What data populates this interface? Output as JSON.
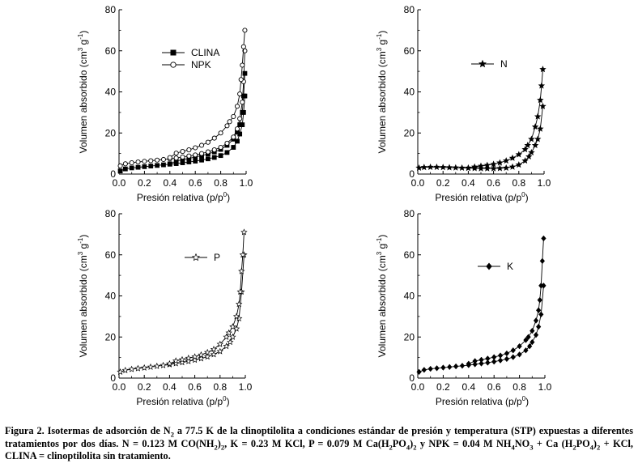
{
  "chart_data": [
    {
      "id": "clina-npk",
      "type": "line",
      "xlabel": "Presión relativa (p/p0)",
      "ylabel": "Volumen absorbido (cm3 g-1)",
      "xlim": [
        0.0,
        1.0
      ],
      "ylim": [
        0,
        80
      ],
      "xticks": [
        "0.0",
        "0.2",
        "0.4",
        "0.6",
        "0.8",
        "1.0"
      ],
      "yticks": [
        "0",
        "20",
        "40",
        "60",
        "80"
      ],
      "legend_position": "upper-left",
      "series": [
        {
          "name": "CLINA",
          "marker": "square-filled",
          "adsorption": {
            "x": [
              0.01,
              0.05,
              0.1,
              0.15,
              0.2,
              0.25,
              0.3,
              0.35,
              0.4,
              0.45,
              0.5,
              0.55,
              0.6,
              0.65,
              0.7,
              0.75,
              0.8,
              0.85,
              0.9,
              0.93,
              0.95,
              0.97,
              0.98,
              0.99
            ],
            "y": [
              1.5,
              2.5,
              3.0,
              3.3,
              3.6,
              3.9,
              4.2,
              4.5,
              4.8,
              5.1,
              5.5,
              5.9,
              6.3,
              6.8,
              7.4,
              8.1,
              9.0,
              10.5,
              13.0,
              16.0,
              19.5,
              24.0,
              30.0,
              38.0
            ]
          },
          "desorption": {
            "x": [
              0.99,
              0.98,
              0.97,
              0.95,
              0.93,
              0.9,
              0.85,
              0.8,
              0.75,
              0.7,
              0.65,
              0.6,
              0.55,
              0.5,
              0.45,
              0.4
            ],
            "y": [
              49.0,
              38.0,
              30.0,
              24.0,
              20.5,
              17.0,
              14.0,
              12.0,
              10.8,
              9.8,
              9.0,
              8.3,
              7.6,
              7.0,
              6.3,
              5.0
            ]
          }
        },
        {
          "name": "NPK",
          "marker": "circle-open",
          "adsorption": {
            "x": [
              0.01,
              0.05,
              0.1,
              0.15,
              0.2,
              0.25,
              0.3,
              0.35,
              0.4,
              0.45,
              0.5,
              0.55,
              0.6,
              0.65,
              0.7,
              0.75,
              0.8,
              0.85,
              0.9,
              0.93,
              0.95,
              0.97,
              0.98,
              0.99
            ],
            "y": [
              4.0,
              5.0,
              5.5,
              5.9,
              6.2,
              6.5,
              6.8,
              7.1,
              7.4,
              7.8,
              8.3,
              8.8,
              9.3,
              10.0,
              10.8,
              11.8,
              13.0,
              15.0,
              18.0,
              22.0,
              27.0,
              35.0,
              45.0,
              60.0
            ]
          },
          "desorption": {
            "x": [
              0.99,
              0.98,
              0.97,
              0.96,
              0.95,
              0.93,
              0.9,
              0.87,
              0.85,
              0.8,
              0.75,
              0.7,
              0.65,
              0.6,
              0.55,
              0.5,
              0.45,
              0.4
            ],
            "y": [
              70.0,
              62.0,
              53.0,
              46.0,
              39.0,
              33.0,
              28.0,
              25.5,
              23.5,
              20.0,
              17.5,
              15.5,
              14.0,
              12.8,
              11.8,
              11.0,
              10.2,
              8.0
            ]
          }
        }
      ]
    },
    {
      "id": "n",
      "type": "line",
      "xlabel": "Presión relativa (p/p0)",
      "ylabel": "Volumen absorbido (cm3 g-1)",
      "xlim": [
        0.0,
        1.0
      ],
      "ylim": [
        0,
        80
      ],
      "xticks": [
        "0.0",
        "0.2",
        "0.4",
        "0.6",
        "0.8",
        "1.0"
      ],
      "yticks": [
        "0",
        "20",
        "40",
        "60",
        "80"
      ],
      "legend_position": "upper-center",
      "series": [
        {
          "name": "N",
          "marker": "star-filled",
          "adsorption": {
            "x": [
              0.01,
              0.05,
              0.1,
              0.15,
              0.2,
              0.25,
              0.3,
              0.35,
              0.4,
              0.45,
              0.5,
              0.55,
              0.6,
              0.65,
              0.7,
              0.75,
              0.8,
              0.85,
              0.88,
              0.9,
              0.93,
              0.95,
              0.97,
              0.99
            ],
            "y": [
              3.0,
              3.3,
              3.4,
              3.4,
              3.3,
              3.2,
              3.1,
              3.0,
              2.9,
              2.8,
              2.7,
              2.7,
              2.7,
              2.8,
              3.0,
              3.5,
              4.5,
              6.5,
              8.5,
              10.5,
              14.0,
              17.0,
              22.0,
              33.0
            ]
          },
          "desorption": {
            "x": [
              0.99,
              0.98,
              0.97,
              0.95,
              0.93,
              0.9,
              0.87,
              0.85,
              0.8,
              0.75,
              0.7,
              0.65,
              0.6,
              0.55,
              0.5,
              0.45,
              0.4
            ],
            "y": [
              51.0,
              43.0,
              36.0,
              28.0,
              23.0,
              17.0,
              14.0,
              12.0,
              9.5,
              7.8,
              6.5,
              5.5,
              4.8,
              4.3,
              3.9,
              3.5,
              3.0
            ]
          }
        }
      ]
    },
    {
      "id": "p",
      "type": "line",
      "xlabel": "Presión relativa (p/p0)",
      "ylabel": "Volumen absorbido (cm3 g-1)",
      "xlim": [
        0.0,
        1.0
      ],
      "ylim": [
        0,
        80
      ],
      "xticks": [
        "0.0",
        "0.2",
        "0.4",
        "0.6",
        "0.8",
        "1.0"
      ],
      "yticks": [
        "0",
        "20",
        "40",
        "60",
        "80"
      ],
      "legend_position": "upper-center",
      "series": [
        {
          "name": "P",
          "marker": "star-open",
          "adsorption": {
            "x": [
              0.01,
              0.05,
              0.1,
              0.15,
              0.2,
              0.25,
              0.3,
              0.35,
              0.4,
              0.45,
              0.5,
              0.55,
              0.6,
              0.65,
              0.7,
              0.75,
              0.8,
              0.85,
              0.88,
              0.9,
              0.93,
              0.95,
              0.97,
              0.99
            ],
            "y": [
              3.0,
              3.8,
              4.3,
              4.7,
              5.0,
              5.4,
              5.8,
              6.2,
              6.6,
              7.1,
              7.6,
              8.2,
              8.8,
              9.5,
              10.4,
              11.5,
              13.0,
              15.5,
              17.5,
              20.0,
              24.0,
              29.0,
              42.0,
              60.0
            ]
          },
          "desorption": {
            "x": [
              0.99,
              0.98,
              0.97,
              0.96,
              0.95,
              0.93,
              0.9,
              0.87,
              0.85,
              0.8,
              0.75,
              0.7,
              0.65,
              0.6,
              0.55,
              0.5,
              0.45,
              0.4
            ],
            "y": [
              71.0,
              60.0,
              52.0,
              42.0,
              36.0,
              30.0,
              25.0,
              22.0,
              20.0,
              16.5,
              14.0,
              12.5,
              11.3,
              10.4,
              9.7,
              9.0,
              8.4,
              7.0
            ]
          }
        }
      ]
    },
    {
      "id": "k",
      "type": "line",
      "xlabel": "Presión relativa (p/p0)",
      "ylabel": "Volumen absorbido (cm3 g-1)",
      "xlim": [
        0.0,
        1.0
      ],
      "ylim": [
        0,
        80
      ],
      "xticks": [
        "0.0",
        "0.2",
        "0.4",
        "0.6",
        "0.8",
        "1.0"
      ],
      "yticks": [
        "0",
        "20",
        "40",
        "60",
        "80"
      ],
      "legend_position": "upper-center",
      "series": [
        {
          "name": "K",
          "marker": "diamond-filled",
          "adsorption": {
            "x": [
              0.01,
              0.05,
              0.1,
              0.15,
              0.2,
              0.25,
              0.3,
              0.35,
              0.4,
              0.45,
              0.5,
              0.55,
              0.6,
              0.65,
              0.7,
              0.75,
              0.8,
              0.85,
              0.88,
              0.9,
              0.93,
              0.95,
              0.97,
              0.99
            ],
            "y": [
              3.0,
              4.0,
              4.5,
              4.8,
              5.1,
              5.4,
              5.7,
              6.0,
              6.3,
              6.7,
              7.1,
              7.5,
              8.0,
              8.6,
              9.3,
              10.2,
              11.5,
              13.5,
              15.5,
              17.5,
              21.0,
              25.0,
              31.0,
              45.0
            ]
          },
          "desorption": {
            "x": [
              0.99,
              0.98,
              0.97,
              0.96,
              0.95,
              0.93,
              0.9,
              0.87,
              0.85,
              0.8,
              0.75,
              0.7,
              0.65,
              0.6,
              0.55,
              0.5,
              0.45,
              0.4
            ],
            "y": [
              68.0,
              57.0,
              45.0,
              38.0,
              33.0,
              28.0,
              23.0,
              20.0,
              18.5,
              15.5,
              13.5,
              12.0,
              11.0,
              10.2,
              9.5,
              8.9,
              8.3,
              7.0
            ]
          }
        }
      ]
    }
  ],
  "caption": {
    "part1": "Figura 2. Isotermas de adsorción de N",
    "part2": "2",
    "part3": " a 77.5 K de la clinoptilolita a condiciones estándar de presión y temperatura (STP) expuestas a diferentes tratamientos por dos días. N = 0.123 M CO(NH",
    "part4": "2",
    "part5": ")",
    "part6": "2",
    "part7": ", K = 0.23 M KCl, P = 0.079 M Ca(H",
    "part8": "2",
    "part9": "PO",
    "part10": "4",
    "part11": ")",
    "part12": "2",
    "part13": " y NPK = 0.04 M NH",
    "part14": "4",
    "part15": "NO",
    "part16": "3",
    "part17": " + Ca (H",
    "part18": "2",
    "part19": "PO",
    "part20": "4",
    "part21": ")",
    "part22": "2",
    "part23": " + KCl, CLINA = clinoptilolita sin tratamiento."
  }
}
